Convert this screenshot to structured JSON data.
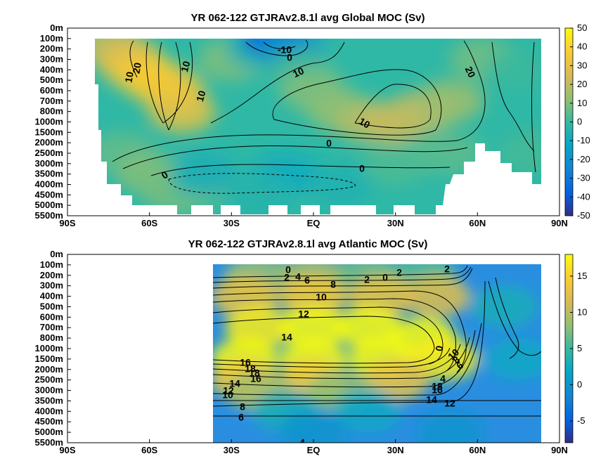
{
  "chart_data": [
    {
      "type": "heatmap",
      "title": "YR 062-122 GTJRAv2.8.1l avg  Global MOC (Sv)",
      "xlabel": "",
      "ylabel": "",
      "x_ticks": [
        "90S",
        "60S",
        "30S",
        "EQ",
        "30N",
        "60N",
        "90N"
      ],
      "xlim": [
        -90,
        90
      ],
      "y_ticks": [
        "0m",
        "100m",
        "200m",
        "300m",
        "400m",
        "500m",
        "600m",
        "700m",
        "800m",
        "1000m",
        "1500m",
        "2000m",
        "2500m",
        "3000m",
        "3500m",
        "4000m",
        "4500m",
        "5000m",
        "5500m"
      ],
      "colorbar": {
        "min": -50,
        "max": 50,
        "ticks": [
          "50",
          "40",
          "30",
          "20",
          "10",
          "0",
          "-10",
          "-20",
          "-30",
          "-40",
          "-50"
        ],
        "colormap": "parula"
      },
      "cells": [
        [
          -78,
          1,
          12
        ],
        [
          -72,
          2,
          18
        ],
        [
          -68,
          3,
          26
        ],
        [
          -64,
          4,
          32
        ],
        [
          -58,
          5,
          36
        ],
        [
          -52,
          6,
          34
        ],
        [
          -48,
          8,
          30
        ],
        [
          -70,
          12,
          6
        ],
        [
          -60,
          14,
          10
        ],
        [
          -50,
          16,
          8
        ],
        [
          -40,
          15,
          5
        ],
        [
          -30,
          3,
          10
        ],
        [
          -20,
          2,
          -6
        ],
        [
          -14,
          1,
          -36
        ],
        [
          -8,
          2,
          -18
        ],
        [
          -4,
          4,
          2
        ],
        [
          0,
          6,
          10
        ],
        [
          10,
          8,
          12
        ],
        [
          20,
          9,
          18
        ],
        [
          30,
          9,
          22
        ],
        [
          40,
          8,
          20
        ],
        [
          50,
          7,
          14
        ],
        [
          62,
          3,
          8
        ],
        [
          75,
          4,
          0
        ],
        [
          80,
          12,
          2
        ],
        [
          -40,
          14,
          -8
        ],
        [
          -10,
          14,
          -10
        ],
        [
          10,
          15,
          -6
        ],
        [
          -20,
          16,
          -4
        ],
        [
          30,
          13,
          3
        ],
        [
          50,
          12,
          5
        ]
      ],
      "contour_labels": [
        "-10",
        "0",
        "10",
        "20",
        "10",
        "10",
        "10",
        "20",
        "10",
        "0",
        "0",
        "0"
      ]
    },
    {
      "type": "heatmap",
      "title": "YR 062-122 GTJRAv2.8.1l avg  Atlantic MOC (Sv)",
      "xlabel": "",
      "ylabel": "",
      "x_ticks": [
        "90S",
        "60S",
        "30S",
        "EQ",
        "30N",
        "60N",
        "90N"
      ],
      "xlim": [
        -90,
        90
      ],
      "y_ticks": [
        "0m",
        "100m",
        "200m",
        "300m",
        "400m",
        "500m",
        "600m",
        "700m",
        "800m",
        "1000m",
        "1500m",
        "2000m",
        "2500m",
        "3000m",
        "3500m",
        "4000m",
        "4500m",
        "5000m",
        "5500m"
      ],
      "colorbar": {
        "min": -8,
        "max": 18,
        "ticks": [
          "15",
          "10",
          "5",
          "0",
          "-5"
        ],
        "colormap": "parula"
      },
      "cells": [
        [
          -20,
          2,
          8
        ],
        [
          0,
          2,
          9
        ],
        [
          20,
          2,
          7
        ],
        [
          40,
          2,
          6
        ],
        [
          -25,
          4,
          13
        ],
        [
          0,
          4,
          14
        ],
        [
          25,
          4,
          13
        ],
        [
          45,
          4,
          12
        ],
        [
          -20,
          7,
          17
        ],
        [
          0,
          7,
          18
        ],
        [
          20,
          7,
          18
        ],
        [
          40,
          8,
          18
        ],
        [
          -25,
          10,
          18
        ],
        [
          0,
          10,
          18
        ],
        [
          25,
          10,
          18
        ],
        [
          48,
          10,
          17
        ],
        [
          -25,
          12,
          14
        ],
        [
          0,
          12,
          14
        ],
        [
          30,
          12,
          13
        ],
        [
          -20,
          13,
          9
        ],
        [
          10,
          13,
          8
        ],
        [
          -10,
          15,
          3
        ],
        [
          20,
          15,
          2
        ],
        [
          70,
          5,
          3
        ],
        [
          75,
          10,
          2
        ],
        [
          0,
          17,
          0
        ],
        [
          50,
          17,
          0
        ]
      ],
      "contour_labels": [
        "0",
        "2",
        "4",
        "6",
        "8",
        "10",
        "12",
        "14",
        "16",
        "18",
        "18",
        "16",
        "14",
        "12",
        "10",
        "8",
        "6",
        "4",
        "2",
        "0",
        "2",
        "2",
        "0",
        "10",
        "8",
        "6",
        "4",
        "18",
        "16",
        "14",
        "12"
      ]
    }
  ]
}
